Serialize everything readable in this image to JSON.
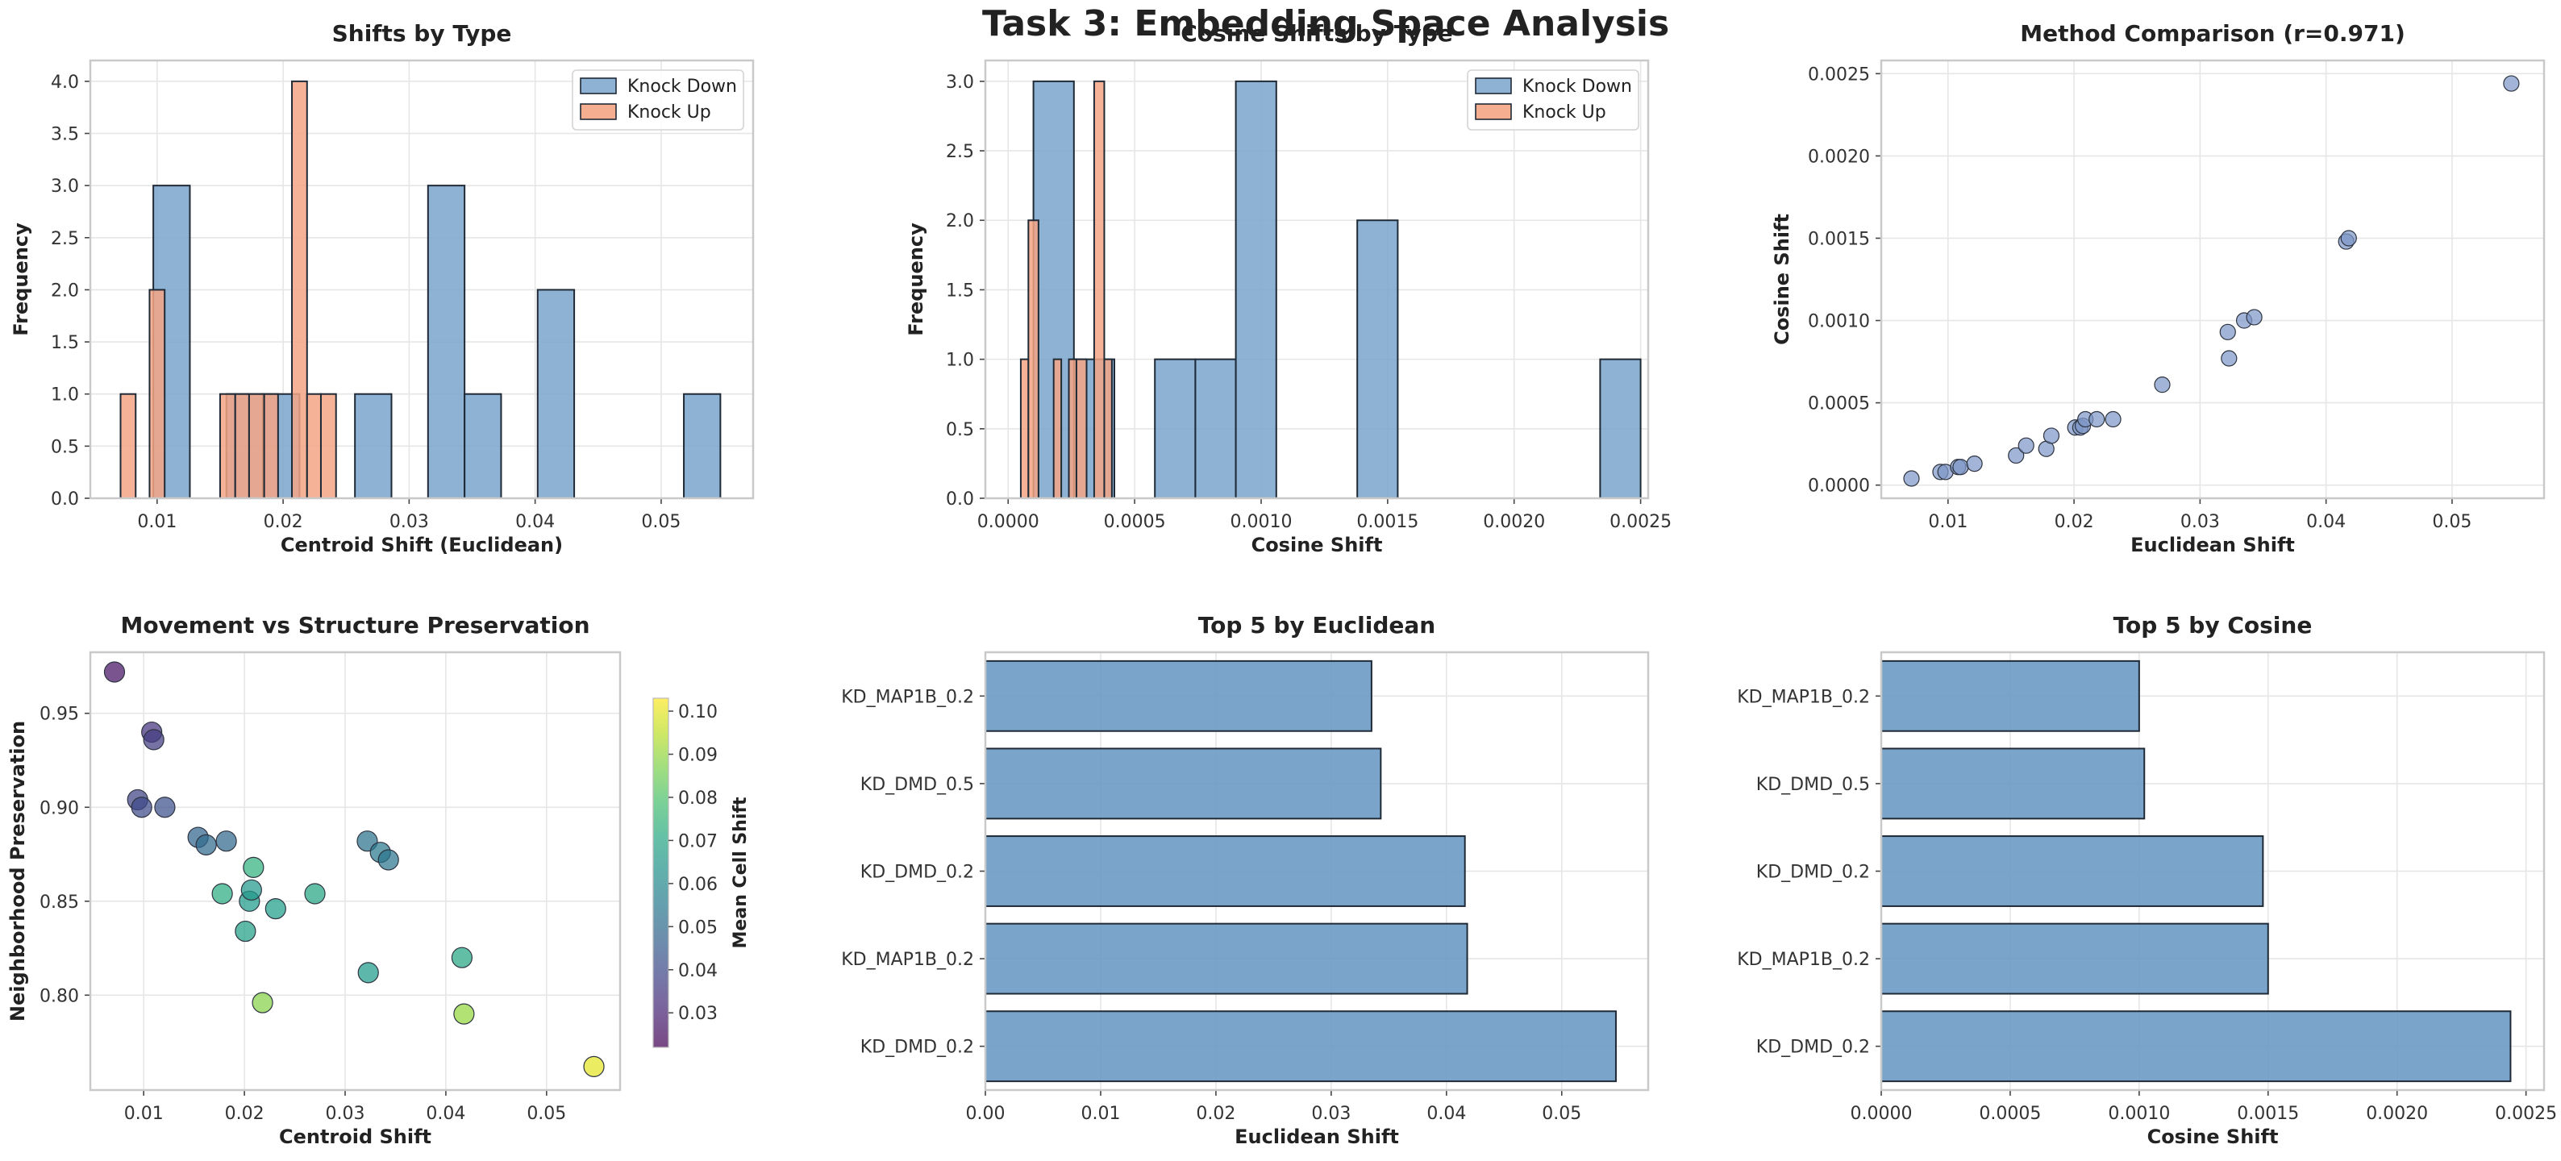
{
  "figure": {
    "title": "Task 3: Embedding Space Analysis"
  },
  "colors": {
    "knock_down": "#7aa5cc",
    "knock_up": "#f5a585",
    "edge": "#1f2a36",
    "grid": "#e6e6e6",
    "spine": "#c9c9c9",
    "bar_h": "#6f9cc6"
  },
  "chart_data": [
    {
      "id": "shifts_by_type",
      "type": "bar",
      "subtype": "histogram",
      "title": "Shifts by Type",
      "xlabel": "Centroid Shift (Euclidean)",
      "ylabel": "Frequency",
      "xlim": [
        0.0047,
        0.0573
      ],
      "ylim": [
        0,
        4.2
      ],
      "xticks": [
        0.01,
        0.02,
        0.03,
        0.04,
        0.05
      ],
      "xtick_labels": [
        "0.01",
        "0.02",
        "0.03",
        "0.04",
        "0.05"
      ],
      "yticks": [
        0,
        0.5,
        1,
        1.5,
        2,
        2.5,
        3,
        3.5,
        4
      ],
      "ytick_labels": [
        "0.0",
        "0.5",
        "1.0",
        "1.5",
        "2.0",
        "2.5",
        "3.0",
        "3.5",
        "4.0"
      ],
      "grid": true,
      "legend": {
        "position": "upper right",
        "entries": [
          "Knock Down",
          "Knock Up"
        ]
      },
      "series": [
        {
          "name": "Knock Down",
          "color_key": "knock_down",
          "bins": [
            {
              "x0": 0.0097,
              "x1": 0.0126,
              "count": 3
            },
            {
              "x0": 0.0155,
              "x1": 0.0184,
              "count": 1
            },
            {
              "x0": 0.0184,
              "x1": 0.0213,
              "count": 1
            },
            {
              "x0": 0.0257,
              "x1": 0.0286,
              "count": 1
            },
            {
              "x0": 0.0315,
              "x1": 0.0344,
              "count": 3
            },
            {
              "x0": 0.0344,
              "x1": 0.0373,
              "count": 1
            },
            {
              "x0": 0.0402,
              "x1": 0.0431,
              "count": 2
            },
            {
              "x0": 0.0518,
              "x1": 0.0547,
              "count": 1
            }
          ]
        },
        {
          "name": "Knock Up",
          "color_key": "knock_up",
          "bins": [
            {
              "x0": 0.0071,
              "x1": 0.0083,
              "count": 1
            },
            {
              "x0": 0.0094,
              "x1": 0.0106,
              "count": 2
            },
            {
              "x0": 0.015,
              "x1": 0.0162,
              "count": 1
            },
            {
              "x0": 0.0162,
              "x1": 0.0173,
              "count": 1
            },
            {
              "x0": 0.0173,
              "x1": 0.0185,
              "count": 1
            },
            {
              "x0": 0.0185,
              "x1": 0.0196,
              "count": 1
            },
            {
              "x0": 0.0207,
              "x1": 0.0219,
              "count": 4
            },
            {
              "x0": 0.0219,
              "x1": 0.023,
              "count": 1
            },
            {
              "x0": 0.023,
              "x1": 0.0242,
              "count": 1
            }
          ]
        }
      ]
    },
    {
      "id": "cosine_shifts_by_type",
      "type": "bar",
      "subtype": "histogram",
      "title": "Cosine Shifts by Type",
      "xlabel": "Cosine Shift",
      "ylabel": "Frequency",
      "xlim": [
        -9e-05,
        0.00253
      ],
      "ylim": [
        0,
        3.15
      ],
      "xticks": [
        0.0,
        0.0005,
        0.001,
        0.0015,
        0.002,
        0.0025
      ],
      "xtick_labels": [
        "0.0000",
        "0.0005",
        "0.0010",
        "0.0015",
        "0.0020",
        "0.0025"
      ],
      "yticks": [
        0,
        0.5,
        1,
        1.5,
        2,
        2.5,
        3
      ],
      "ytick_labels": [
        "0.0",
        "0.5",
        "1.0",
        "1.5",
        "2.0",
        "2.5",
        "3.0"
      ],
      "grid": true,
      "legend": {
        "position": "upper right",
        "entries": [
          "Knock Down",
          "Knock Up"
        ]
      },
      "series": [
        {
          "name": "Knock Down",
          "color_key": "knock_down",
          "bins": [
            {
              "x0": 0.0001,
              "x1": 0.00026,
              "count": 3
            },
            {
              "x0": 0.00026,
              "x1": 0.00042,
              "count": 1
            },
            {
              "x0": 0.00058,
              "x1": 0.00074,
              "count": 1
            },
            {
              "x0": 0.00074,
              "x1": 0.0009,
              "count": 1
            },
            {
              "x0": 0.0009,
              "x1": 0.00106,
              "count": 3
            },
            {
              "x0": 0.00138,
              "x1": 0.00154,
              "count": 2
            },
            {
              "x0": 0.00234,
              "x1": 0.0025,
              "count": 1
            }
          ]
        },
        {
          "name": "Knock Up",
          "color_key": "knock_up",
          "bins": [
            {
              "x0": 5e-05,
              "x1": 8e-05,
              "count": 1
            },
            {
              "x0": 8e-05,
              "x1": 0.00012,
              "count": 2
            },
            {
              "x0": 0.00018,
              "x1": 0.00021,
              "count": 1
            },
            {
              "x0": 0.00024,
              "x1": 0.00027,
              "count": 1
            },
            {
              "x0": 0.00027,
              "x1": 0.00031,
              "count": 1
            },
            {
              "x0": 0.00034,
              "x1": 0.00038,
              "count": 3
            },
            {
              "x0": 0.00038,
              "x1": 0.00041,
              "count": 1
            }
          ]
        }
      ]
    },
    {
      "id": "method_comparison",
      "type": "scatter",
      "title": "Method Comparison (r=0.971)",
      "xlabel": "Euclidean Shift",
      "ylabel": "Cosine Shift",
      "xlim": [
        0.0047,
        0.0573
      ],
      "ylim": [
        -8e-05,
        0.00258
      ],
      "xticks": [
        0.01,
        0.02,
        0.03,
        0.04,
        0.05
      ],
      "xtick_labels": [
        "0.01",
        "0.02",
        "0.03",
        "0.04",
        "0.05"
      ],
      "yticks": [
        0.0,
        0.0005,
        0.001,
        0.0015,
        0.002,
        0.0025
      ],
      "ytick_labels": [
        "0.0000",
        "0.0005",
        "0.0010",
        "0.0015",
        "0.0020",
        "0.0025"
      ],
      "grid": true,
      "points": [
        {
          "x": 0.0071,
          "y": 4e-05
        },
        {
          "x": 0.0094,
          "y": 8e-05
        },
        {
          "x": 0.0098,
          "y": 8e-05
        },
        {
          "x": 0.0108,
          "y": 0.00011
        },
        {
          "x": 0.011,
          "y": 0.00011
        },
        {
          "x": 0.0121,
          "y": 0.00013
        },
        {
          "x": 0.0154,
          "y": 0.00018
        },
        {
          "x": 0.0162,
          "y": 0.00024
        },
        {
          "x": 0.0178,
          "y": 0.00022
        },
        {
          "x": 0.0182,
          "y": 0.0003
        },
        {
          "x": 0.0201,
          "y": 0.00035
        },
        {
          "x": 0.0205,
          "y": 0.00035
        },
        {
          "x": 0.0207,
          "y": 0.00036
        },
        {
          "x": 0.0209,
          "y": 0.0004
        },
        {
          "x": 0.0218,
          "y": 0.0004
        },
        {
          "x": 0.0231,
          "y": 0.0004
        },
        {
          "x": 0.027,
          "y": 0.00061
        },
        {
          "x": 0.0322,
          "y": 0.00093
        },
        {
          "x": 0.0323,
          "y": 0.00077
        },
        {
          "x": 0.0335,
          "y": 0.001
        },
        {
          "x": 0.0343,
          "y": 0.00102
        },
        {
          "x": 0.0416,
          "y": 0.00148
        },
        {
          "x": 0.0418,
          "y": 0.0015
        },
        {
          "x": 0.0547,
          "y": 0.00244
        }
      ]
    },
    {
      "id": "movement_vs_structure",
      "type": "scatter",
      "title": "Movement vs Structure Preservation",
      "xlabel": "Centroid Shift",
      "ylabel": "Neighborhood Preservation",
      "colorbar_label": "Mean Cell Shift",
      "xlim": [
        0.0047,
        0.0573
      ],
      "ylim": [
        0.7495,
        0.9825
      ],
      "xticks": [
        0.01,
        0.02,
        0.03,
        0.04,
        0.05
      ],
      "xtick_labels": [
        "0.01",
        "0.02",
        "0.03",
        "0.04",
        "0.05"
      ],
      "yticks": [
        0.8,
        0.85,
        0.9,
        0.95
      ],
      "ytick_labels": [
        "0.80",
        "0.85",
        "0.90",
        "0.95"
      ],
      "clim": [
        0.022,
        0.103
      ],
      "cticks": [
        0.03,
        0.04,
        0.05,
        0.06,
        0.07,
        0.08,
        0.09,
        0.1
      ],
      "ctick_labels": [
        "0.03",
        "0.04",
        "0.05",
        "0.06",
        "0.07",
        "0.08",
        "0.09",
        "0.10"
      ],
      "grid": true,
      "points": [
        {
          "x": 0.0071,
          "y": 0.972,
          "c": 0.026
        },
        {
          "x": 0.0094,
          "y": 0.904,
          "c": 0.038
        },
        {
          "x": 0.0098,
          "y": 0.9,
          "c": 0.04
        },
        {
          "x": 0.0108,
          "y": 0.94,
          "c": 0.034
        },
        {
          "x": 0.011,
          "y": 0.936,
          "c": 0.036
        },
        {
          "x": 0.0121,
          "y": 0.9,
          "c": 0.042
        },
        {
          "x": 0.0154,
          "y": 0.884,
          "c": 0.048
        },
        {
          "x": 0.0162,
          "y": 0.88,
          "c": 0.05
        },
        {
          "x": 0.0178,
          "y": 0.854,
          "c": 0.072
        },
        {
          "x": 0.0182,
          "y": 0.882,
          "c": 0.049
        },
        {
          "x": 0.0201,
          "y": 0.834,
          "c": 0.068
        },
        {
          "x": 0.0205,
          "y": 0.85,
          "c": 0.066
        },
        {
          "x": 0.0207,
          "y": 0.856,
          "c": 0.065
        },
        {
          "x": 0.0209,
          "y": 0.868,
          "c": 0.074
        },
        {
          "x": 0.0218,
          "y": 0.796,
          "c": 0.088
        },
        {
          "x": 0.0231,
          "y": 0.846,
          "c": 0.067
        },
        {
          "x": 0.027,
          "y": 0.854,
          "c": 0.07
        },
        {
          "x": 0.0322,
          "y": 0.882,
          "c": 0.052
        },
        {
          "x": 0.0323,
          "y": 0.812,
          "c": 0.066
        },
        {
          "x": 0.0335,
          "y": 0.876,
          "c": 0.055
        },
        {
          "x": 0.0343,
          "y": 0.872,
          "c": 0.054
        },
        {
          "x": 0.0416,
          "y": 0.82,
          "c": 0.07
        },
        {
          "x": 0.0418,
          "y": 0.79,
          "c": 0.09
        },
        {
          "x": 0.0547,
          "y": 0.762,
          "c": 0.1
        }
      ]
    },
    {
      "id": "top5_euclidean",
      "type": "bar",
      "orientation": "horizontal",
      "title": "Top 5 by Euclidean",
      "xlabel": "Euclidean Shift",
      "xlim": [
        0,
        0.0575
      ],
      "xticks": [
        0,
        0.01,
        0.02,
        0.03,
        0.04,
        0.05
      ],
      "xtick_labels": [
        "0.00",
        "0.01",
        "0.02",
        "0.03",
        "0.04",
        "0.05"
      ],
      "grid": true,
      "categories": [
        "KD_MAP1B_0.2",
        "KD_DMD_0.5",
        "KD_DMD_0.2",
        "KD_MAP1B_0.2",
        "KD_DMD_0.2"
      ],
      "values": [
        0.0335,
        0.0343,
        0.0416,
        0.0418,
        0.0547
      ]
    },
    {
      "id": "top5_cosine",
      "type": "bar",
      "orientation": "horizontal",
      "title": "Top 5 by Cosine",
      "xlabel": "Cosine Shift",
      "xlim": [
        0,
        0.00257
      ],
      "xticks": [
        0,
        0.0005,
        0.001,
        0.0015,
        0.002,
        0.0025
      ],
      "xtick_labels": [
        "0.0000",
        "0.0005",
        "0.0010",
        "0.0015",
        "0.0020",
        "0.0025"
      ],
      "grid": true,
      "categories": [
        "KD_MAP1B_0.2",
        "KD_DMD_0.5",
        "KD_DMD_0.2",
        "KD_MAP1B_0.2",
        "KD_DMD_0.2"
      ],
      "values": [
        0.001,
        0.00102,
        0.00148,
        0.0015,
        0.00244
      ]
    }
  ]
}
